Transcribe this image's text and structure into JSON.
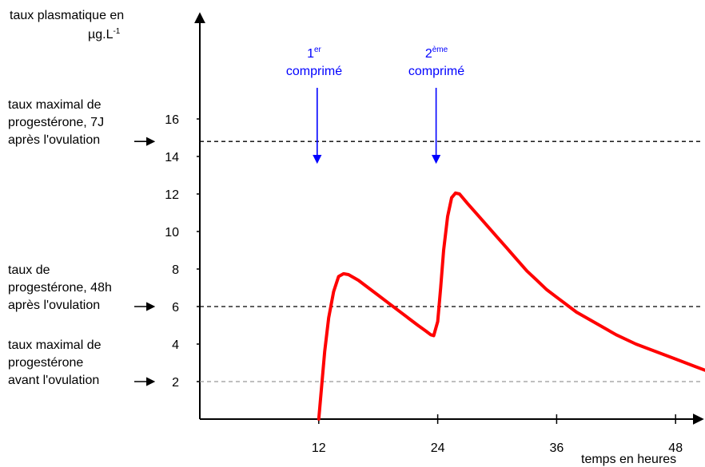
{
  "chart_data": {
    "type": "line",
    "ylabel_line1": "taux plasmatique en",
    "ylabel_unit": "µg.L",
    "ylabel_unit_exp": "-1",
    "xlabel": "temps en heures",
    "x_ticks": [
      "12",
      "24",
      "36",
      "48"
    ],
    "y_ticks": [
      "2",
      "4",
      "6",
      "8",
      "10",
      "12",
      "14",
      "16"
    ],
    "xlim": [
      0,
      58
    ],
    "ylim": [
      0,
      20
    ],
    "series": [
      {
        "color": "#ff0000",
        "x": [
          12,
          12.3,
          12.6,
          13,
          13.5,
          14,
          14.5,
          15,
          16,
          17,
          18,
          19,
          20,
          21,
          22,
          22.8,
          23.3,
          23.6,
          24,
          24.3,
          24.6,
          25,
          25.4,
          25.8,
          26.2,
          27,
          28,
          29,
          30,
          31,
          32,
          33,
          34,
          35,
          36,
          37,
          38,
          40,
          42,
          44,
          46,
          48,
          50,
          51.5
        ],
        "y": [
          0,
          1.8,
          3.6,
          5.4,
          6.8,
          7.6,
          7.75,
          7.7,
          7.4,
          7.0,
          6.6,
          6.2,
          5.8,
          5.4,
          5.0,
          4.7,
          4.5,
          4.45,
          5.2,
          7.0,
          9.0,
          10.8,
          11.8,
          12.05,
          12.0,
          11.5,
          10.9,
          10.3,
          9.7,
          9.1,
          8.5,
          7.9,
          7.4,
          6.9,
          6.5,
          6.1,
          5.7,
          5.1,
          4.5,
          4.0,
          3.6,
          3.2,
          2.8,
          2.5
        ]
      }
    ],
    "reference_lines": [
      {
        "y": 14.8,
        "color": "#000000",
        "label": [
          "taux maximal de",
          "progestérone, 7J",
          "après l'ovulation"
        ]
      },
      {
        "y": 6.0,
        "color": "#000000",
        "label": [
          "taux de",
          "progestérone, 48h",
          "après l'ovulation"
        ]
      },
      {
        "y": 2.0,
        "color": "#999999",
        "label": [
          "taux maximal de",
          "progestérone",
          "avant l'ovulation"
        ]
      }
    ],
    "annotations": [
      {
        "x": 12,
        "number": "1",
        "sup": "er",
        "text": "comprimé",
        "color": "#0000ff"
      },
      {
        "x": 24,
        "number": "2",
        "sup": "ème",
        "text": "comprimé",
        "color": "#0000ff"
      }
    ],
    "grid": false,
    "legend": "none"
  }
}
